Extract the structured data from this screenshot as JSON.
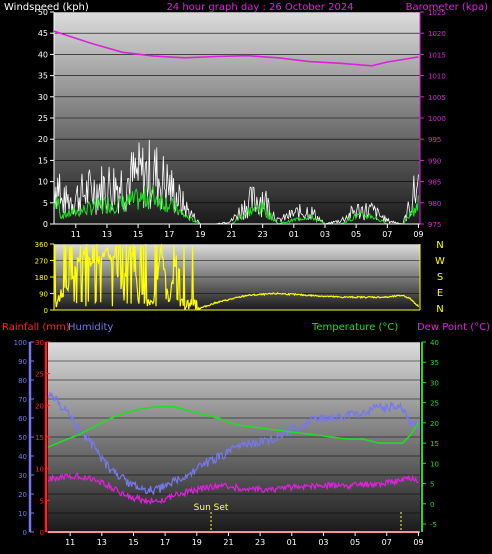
{
  "colors": {
    "background": "#000000",
    "plot_grad_top": "#dcdcdc",
    "plot_grad_bottom": "#1a1a1a",
    "grid": "#000000",
    "wind_speed": "#ffffff",
    "wind_avg": "#22dd22",
    "barometer": "#dd22dd",
    "wind_dir": "#ffff00",
    "humidity": "#7777ee",
    "temperature": "#22dd22",
    "dew_point": "#dd22dd",
    "rainfall": "#ff2222",
    "sun_marker": "#ffff66",
    "x_ticks": "#ffffff"
  },
  "x_labels": [
    "11",
    "13",
    "15",
    "17",
    "19",
    "21",
    "23",
    "01",
    "03",
    "05",
    "07",
    "09"
  ],
  "chart_data": [
    {
      "type": "line",
      "id": "wind-barometer",
      "title": "24 hour graph day : 26 October 2024",
      "ylabel_left": "Windspeed (kph)",
      "ylabel_right": "Barometer (kpa)",
      "ylim_left": [
        0,
        50
      ],
      "ylim_right": [
        975,
        1025
      ],
      "yticks_left": [
        0,
        5,
        10,
        15,
        20,
        25,
        30,
        35,
        40,
        45,
        50
      ],
      "yticks_right": [
        975,
        980,
        985,
        990,
        995,
        1000,
        1005,
        1010,
        1015,
        1020,
        1025
      ],
      "x_tick_labels": [
        "11",
        "13",
        "15",
        "17",
        "19",
        "21",
        "23",
        "01",
        "03",
        "05",
        "07",
        "09"
      ],
      "series": [
        {
          "axis": "left",
          "x": [
            10,
            11,
            12,
            13,
            14,
            15,
            16,
            17,
            18,
            19,
            20,
            21,
            22,
            23,
            24,
            25,
            26,
            27,
            28,
            29,
            30,
            31,
            32,
            33
          ],
          "values": [
            6,
            8,
            10,
            11,
            12,
            14,
            15,
            11,
            5,
            0,
            0,
            1,
            6,
            8,
            1,
            3,
            4,
            0,
            1,
            4,
            4,
            1,
            0,
            12
          ]
        },
        {
          "axis": "left",
          "x": [
            10,
            11,
            12,
            13,
            14,
            15,
            16,
            17,
            18,
            19,
            20,
            21,
            22,
            23,
            24,
            25,
            26,
            27,
            28,
            29,
            30,
            31,
            32,
            33
          ],
          "values": [
            2,
            3,
            4,
            5,
            5,
            6,
            7,
            5,
            2,
            0,
            0,
            0,
            3,
            4,
            0,
            1,
            2,
            0,
            0,
            2,
            2,
            0,
            0,
            5
          ]
        },
        {
          "name": "Barometer (kpa)",
          "axis": "right",
          "x": [
            9.6,
            10,
            12,
            14,
            16,
            17,
            18,
            20,
            22,
            24,
            26,
            28,
            30,
            31,
            32,
            33
          ],
          "values": [
            1020.5,
            1020,
            1017.6,
            1015.5,
            1014.6,
            1014.4,
            1014.2,
            1014.5,
            1014.7,
            1014.2,
            1013.3,
            1012.9,
            1012.3,
            1013.2,
            1013.8,
            1014.4
          ]
        }
      ]
    },
    {
      "type": "line",
      "id": "wind-direction",
      "ylim": [
        0,
        360
      ],
      "yticks": [
        0,
        90,
        180,
        270,
        360
      ],
      "compass_labels": [
        "N",
        "W",
        "S",
        "E",
        "N"
      ],
      "series": [
        {
          "x": [
            9.6,
            10,
            10.5,
            11,
            11.5,
            12,
            12.5,
            13,
            13.5,
            14,
            14.5,
            15,
            15.5,
            16,
            16.5,
            17,
            17.5,
            18,
            18.5,
            19,
            20,
            22,
            24,
            26,
            28,
            30,
            31,
            32,
            32.5,
            33
          ],
          "values": [
            20,
            80,
            120,
            250,
            300,
            260,
            290,
            330,
            270,
            110,
            340,
            120,
            80,
            30,
            330,
            40,
            300,
            20,
            40,
            10,
            40,
            80,
            90,
            80,
            70,
            70,
            70,
            80,
            60,
            20
          ]
        }
      ]
    },
    {
      "type": "line",
      "id": "temperature-humidity-rain",
      "ylabel_left_a": "Rainfall (mm)",
      "ylabel_left_b": "Humidity",
      "ylabel_right_a": "Temperature (°C)",
      "ylabel_right_b": "Dew Point (°C)",
      "ylim_rain": [
        0,
        30
      ],
      "ylim_humidity": [
        0,
        100
      ],
      "ylim_temp": [
        -5,
        40
      ],
      "yticks_rain": [
        0,
        5,
        10,
        15,
        20,
        25,
        30
      ],
      "yticks_humidity": [
        0,
        10,
        20,
        30,
        40,
        50,
        60,
        70,
        80,
        90,
        100
      ],
      "yticks_temp": [
        -5,
        0,
        5,
        10,
        15,
        20,
        25,
        30,
        35,
        40
      ],
      "x_tick_labels": [
        "11",
        "13",
        "15",
        "17",
        "19",
        "21",
        "23",
        "01",
        "03",
        "05",
        "07",
        "09"
      ],
      "annotation": "Sun Set",
      "sunset_x": 19.9,
      "sunrise_x": 31.9,
      "series": [
        {
          "name": "Humidity",
          "axis": "humidity",
          "x": [
            9.6,
            10.5,
            11.5,
            12.5,
            13.5,
            14.5,
            15.5,
            16.5,
            17.5,
            18.5,
            19.5,
            20.5,
            21.5,
            22.5,
            23.5,
            24.5,
            25.5,
            26.5,
            27.5,
            28.5,
            29.5,
            30.5,
            31,
            31.5,
            32,
            32.5,
            33
          ],
          "values": [
            73,
            66,
            55,
            45,
            33,
            27,
            22,
            22,
            26,
            30,
            36,
            40,
            44,
            47,
            48,
            52,
            55,
            60,
            59,
            62,
            62,
            66,
            65,
            67,
            65,
            58,
            55
          ]
        },
        {
          "name": "Temperature (°C)",
          "axis": "temp",
          "x": [
            9.6,
            10.5,
            11.5,
            12.5,
            13.5,
            14.5,
            15.5,
            16.5,
            17.5,
            18.5,
            19.5,
            20.5,
            21.5,
            22.5,
            23.5,
            24.5,
            25.5,
            26.5,
            27.5,
            28.5,
            29.5,
            30.5,
            31.5,
            32,
            32.5,
            33
          ],
          "values": [
            14,
            15.5,
            17,
            19,
            21,
            22.5,
            23.5,
            24,
            24,
            23,
            22,
            21,
            19.5,
            19,
            18.5,
            18,
            17.5,
            17,
            16.5,
            16,
            16,
            15,
            15,
            15,
            17,
            20
          ]
        },
        {
          "name": "Dew Point (°C)",
          "axis": "temp",
          "x": [
            9.6,
            10.5,
            11.5,
            12.5,
            13.5,
            14.5,
            15.5,
            16.5,
            17.5,
            18.5,
            19.5,
            20.5,
            21.5,
            22.5,
            23.5,
            24.5,
            25.5,
            26.5,
            27.5,
            28.5,
            29.5,
            30.5,
            31.5,
            32,
            32.5,
            33
          ],
          "values": [
            6,
            6.5,
            7,
            6,
            4.5,
            2,
            1,
            0.5,
            2,
            3,
            4,
            4.5,
            4,
            3.5,
            3.5,
            4,
            4,
            4.5,
            4.5,
            4.5,
            5,
            5,
            5.5,
            6,
            6.5,
            6
          ]
        },
        {
          "name": "Rainfall (mm)",
          "axis": "rain",
          "x": [
            9.6,
            33
          ],
          "values": [
            0,
            0
          ]
        }
      ]
    }
  ]
}
